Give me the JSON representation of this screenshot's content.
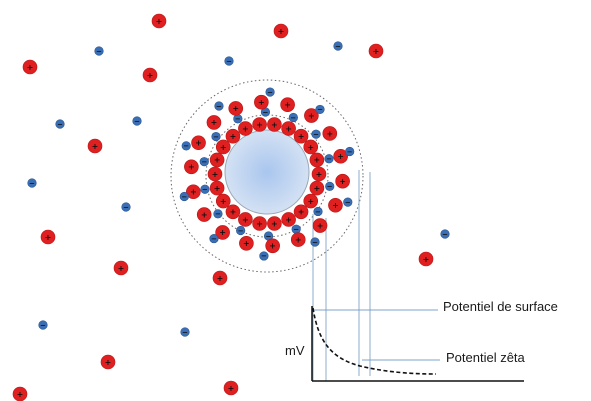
{
  "colors": {
    "cation": "#e02020",
    "anion": "#3a6fb5",
    "particle_center": "#a9c6ee",
    "particle_edge": "#d8e4f4",
    "guide_line": "#7fa3c8",
    "curve": "#111111",
    "axis": "#111111"
  },
  "glyphs": {
    "cation_sign": "+",
    "anion_sign": "−"
  },
  "labels": {
    "surface_potential": "Potentiel de surface",
    "zeta_potential": "Potentiel zêta",
    "y_axis": "mV"
  }
}
